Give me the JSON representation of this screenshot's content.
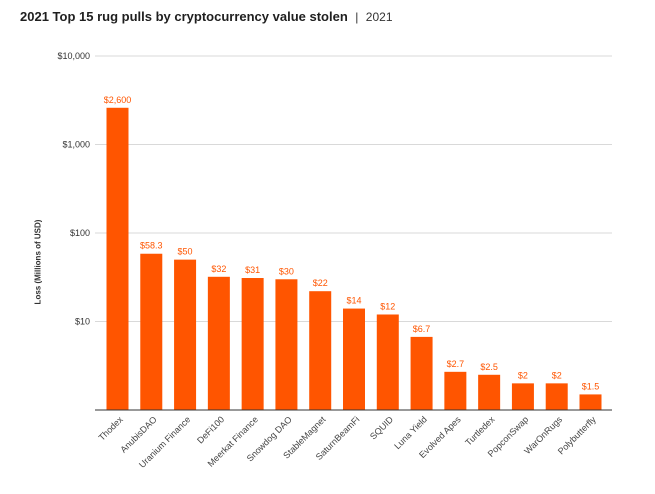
{
  "title": "2021 Top 15 rug pulls by cryptocurrency value stolen",
  "title_separator": "|",
  "subtitle": "2021",
  "chart_data": {
    "type": "bar",
    "title": "2021 Top 15 rug pulls by cryptocurrency value stolen",
    "subtitle": "2021",
    "xlabel": "",
    "ylabel": "Loss (Millions of USD)",
    "yscale": "log",
    "ylim": [
      1,
      10000
    ],
    "yticks": [
      10,
      100,
      1000,
      10000
    ],
    "ytick_labels": [
      "$10",
      "$100",
      "$1,000",
      "$10,000"
    ],
    "grid": true,
    "bar_color": "#ff5500",
    "categories": [
      "Thodex",
      "AnubisDAO",
      "Uranium Finance",
      "DeFi100",
      "Meerkat Finance",
      "Snowdog DAO",
      "StableMagnet",
      "SaturnBeamFi",
      "SQUID",
      "Luna Yield",
      "Evolved Apes",
      "Turtledex",
      "PopconSwap",
      "WarOnRugs",
      "Polybutterfly"
    ],
    "values": [
      2600,
      58.3,
      50,
      32,
      31,
      30,
      22,
      14,
      12,
      6.7,
      2.7,
      2.5,
      2,
      2,
      1.5
    ],
    "data_labels": [
      "$2,600",
      "$58.3",
      "$50",
      "$32",
      "$31",
      "$30",
      "$22",
      "$14",
      "$12",
      "$6.7",
      "$2.7",
      "$2.5",
      "$2",
      "$2",
      "$1.5"
    ]
  }
}
